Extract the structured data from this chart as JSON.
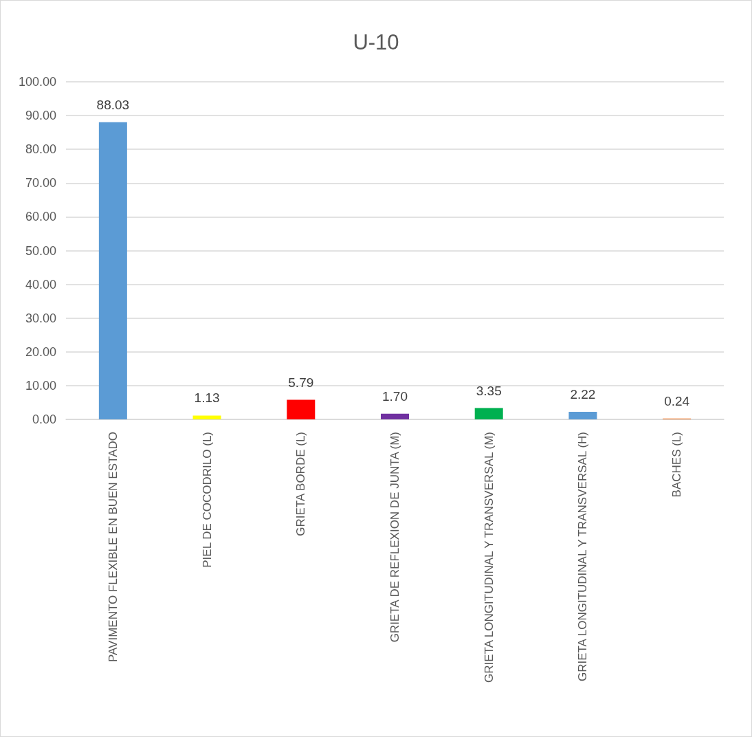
{
  "chart_data": {
    "type": "bar",
    "title": "U-10",
    "categories": [
      "PAVIMENTO FLEXIBLE EN BUEN ESTADO",
      "PIEL DE COCODRILO (L)",
      "GRIETA BORDE (L)",
      "GRIETA DE REFLEXION DE JUNTA (M)",
      "GRIETA LONGITUDINAL Y TRANSVERSAL (M)",
      "GRIETA LONGITUDINAL Y TRANSVERSAL (H)",
      "BACHES (L)"
    ],
    "values": [
      88.03,
      1.13,
      5.79,
      1.7,
      3.35,
      2.22,
      0.24
    ],
    "colors": [
      "#5b9bd5",
      "#ffff00",
      "#ff0000",
      "#7030a0",
      "#00b050",
      "#5b9bd5",
      "#ed7d31"
    ],
    "value_labels": [
      "88.03",
      "1.13",
      "5.79",
      "1.70",
      "3.35",
      "2.22",
      "0.24"
    ],
    "ylim": [
      0,
      100
    ],
    "yticks": [
      {
        "value": 0,
        "label": "0.00"
      },
      {
        "value": 10,
        "label": "10.00"
      },
      {
        "value": 20,
        "label": "20.00"
      },
      {
        "value": 30,
        "label": "30.00"
      },
      {
        "value": 40,
        "label": "40.00"
      },
      {
        "value": 50,
        "label": "50.00"
      },
      {
        "value": 60,
        "label": "60.00"
      },
      {
        "value": 70,
        "label": "70.00"
      },
      {
        "value": 80,
        "label": "80.00"
      },
      {
        "value": 90,
        "label": "90.00"
      },
      {
        "value": 100,
        "label": "100.00"
      }
    ],
    "grid": "y"
  }
}
